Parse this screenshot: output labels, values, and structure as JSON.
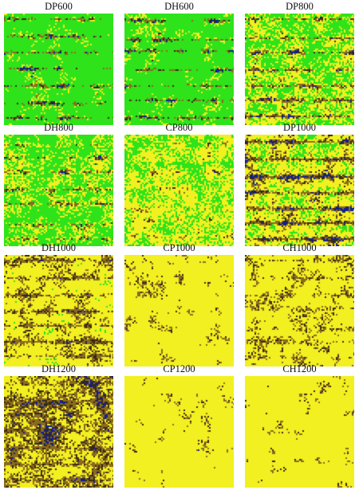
{
  "figure": {
    "panels": [
      {
        "label": "DP600",
        "green": 0.76,
        "yellow": 0.16,
        "brown": 0.04,
        "blue": 0.04,
        "stripes": 0.9
      },
      {
        "label": "DH600",
        "green": 0.72,
        "yellow": 0.17,
        "brown": 0.04,
        "blue": 0.07,
        "stripes": 0.9
      },
      {
        "label": "DP800",
        "green": 0.52,
        "yellow": 0.32,
        "brown": 0.1,
        "blue": 0.06,
        "stripes": 0.8
      },
      {
        "label": "DH800",
        "green": 0.58,
        "yellow": 0.28,
        "brown": 0.08,
        "blue": 0.06,
        "stripes": 0.6
      },
      {
        "label": "CP800",
        "green": 0.46,
        "yellow": 0.4,
        "brown": 0.12,
        "blue": 0.02,
        "stripes": 0.3
      },
      {
        "label": "DP1000",
        "green": 0.35,
        "yellow": 0.37,
        "brown": 0.17,
        "blue": 0.11,
        "stripes": 1.0
      },
      {
        "label": "DH1000",
        "green": 0.16,
        "yellow": 0.52,
        "brown": 0.28,
        "blue": 0.04,
        "stripes": 0.6
      },
      {
        "label": "CP1000",
        "green": 0.02,
        "yellow": 0.76,
        "brown": 0.21,
        "blue": 0.01,
        "stripes": 0.2
      },
      {
        "label": "CH1000",
        "green": 0.05,
        "yellow": 0.66,
        "brown": 0.27,
        "blue": 0.02,
        "stripes": 0.4
      },
      {
        "label": "DH1200",
        "green": 0.06,
        "yellow": 0.44,
        "brown": 0.34,
        "blue": 0.16,
        "stripes": 0.5
      },
      {
        "label": "CP1200",
        "green": 0.03,
        "yellow": 0.8,
        "brown": 0.16,
        "blue": 0.01,
        "stripes": 0.1
      },
      {
        "label": "CH1200",
        "green": 0.03,
        "yellow": 0.78,
        "brown": 0.18,
        "blue": 0.01,
        "stripes": 0.1
      }
    ],
    "colors": {
      "green": "#2ee31a",
      "yellow": "#f2f020",
      "brown": "#8a6a20",
      "blue": "#0a1f9e",
      "dark": "#3a2a10"
    }
  }
}
